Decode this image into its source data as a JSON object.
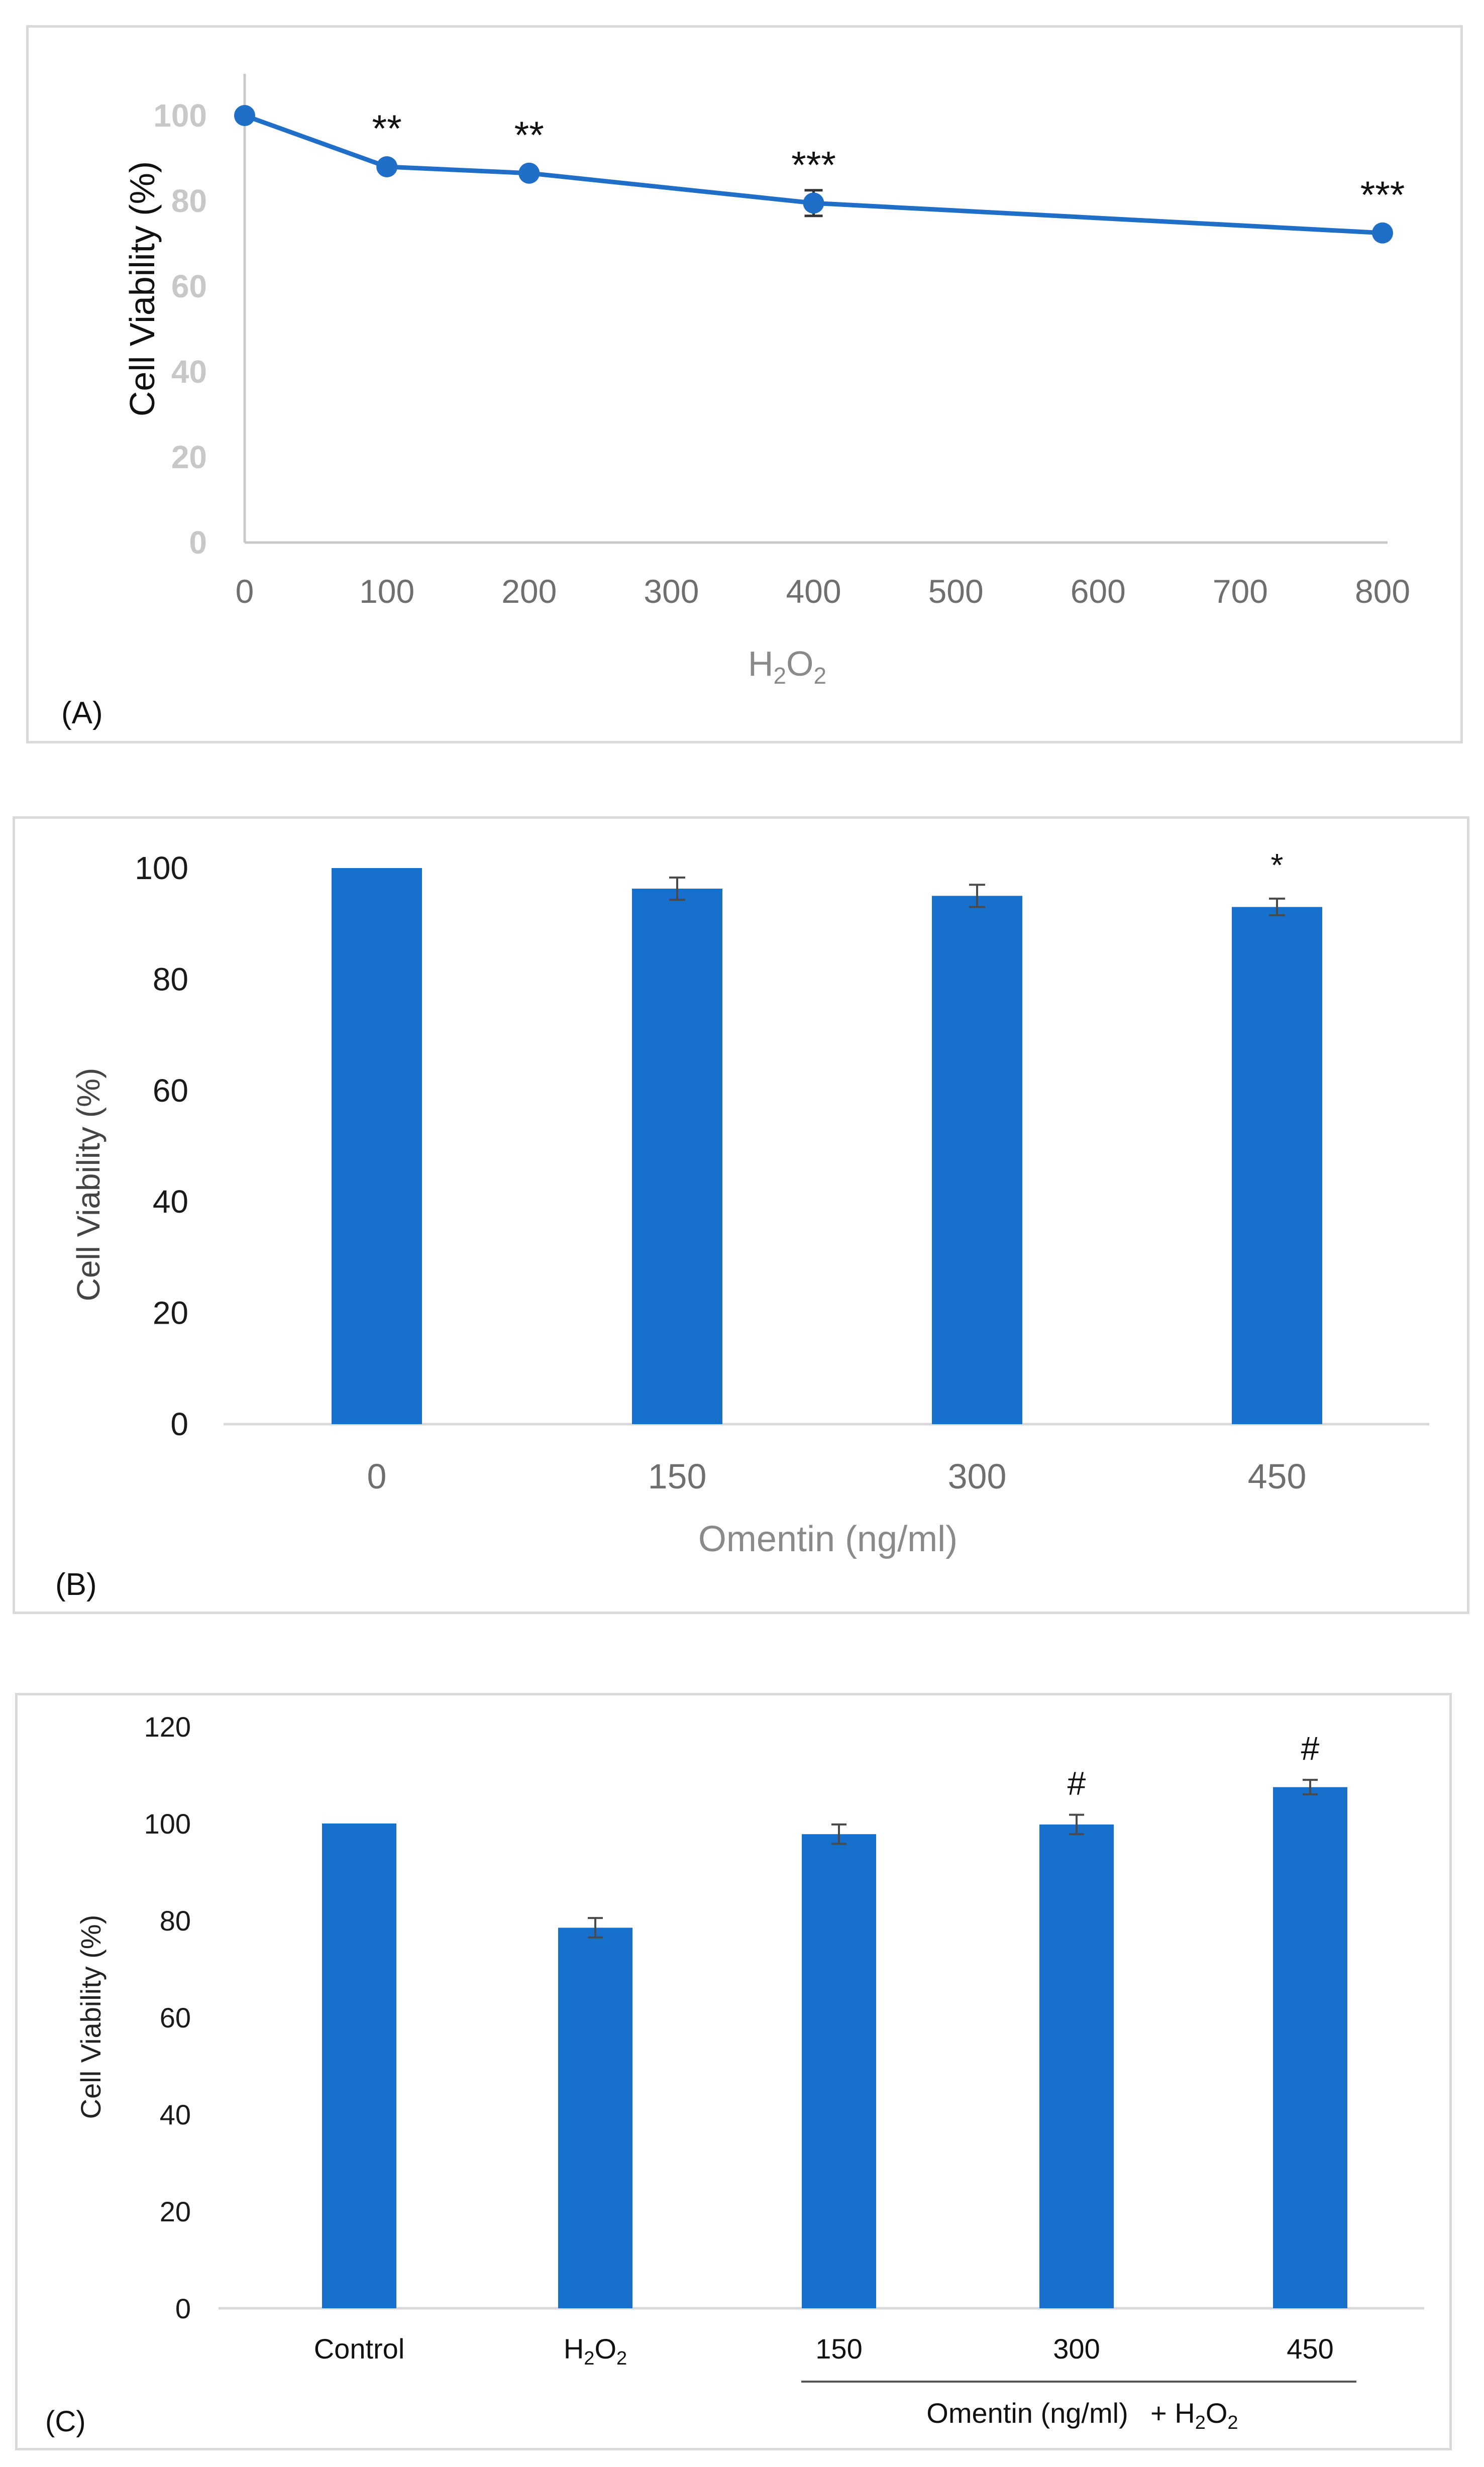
{
  "colors": {
    "series": "#1f6fc8",
    "bar": "#1771cc",
    "axis_dark": "#7f7f7f",
    "tick_gray": "#c8c8c8",
    "tick_dark": "#1a1a1a",
    "tick_mid": "#6f6f6f",
    "label_gray": "#8a8a8a",
    "errbar": "#4a4a4a"
  },
  "chart_data": [
    {
      "panel": "A",
      "panel_label": "(A)",
      "type": "line",
      "x": [
        0,
        100,
        200,
        400,
        800
      ],
      "y": [
        100,
        88,
        86.5,
        79.5,
        72.5
      ],
      "err": [
        0,
        0,
        0,
        3,
        0
      ],
      "annotations": [
        "",
        "**",
        "**",
        "***",
        "***"
      ],
      "xticks": [
        "0",
        "100",
        "200",
        "300",
        "400",
        "500",
        "600",
        "700",
        "800"
      ],
      "yticks": [
        "0",
        "20",
        "40",
        "60",
        "80",
        "100"
      ],
      "xlim": [
        0,
        800
      ],
      "ylim": [
        0,
        110
      ],
      "xlabel": "H",
      "xlabel_sub1": "2",
      "xlabel_mid": "O",
      "xlabel_sub2": "2",
      "ylabel": "Cell Viability (%)"
    },
    {
      "panel": "B",
      "panel_label": "(B)",
      "type": "bar",
      "categories": [
        "0",
        "150",
        "300",
        "450"
      ],
      "values": [
        100,
        96.3,
        95,
        93
      ],
      "err": [
        0,
        2,
        2,
        1.5
      ],
      "annotations": [
        "",
        "",
        "",
        "*"
      ],
      "yticks": [
        "0",
        "20",
        "40",
        "60",
        "80",
        "100"
      ],
      "ylim": [
        0,
        100
      ],
      "xlabel": "Omentin (ng/ml)",
      "ylabel": "Cell Viability (%)"
    },
    {
      "panel": "C",
      "panel_label": "(C)",
      "type": "bar",
      "categories": [
        "Control",
        "H2O2",
        "150",
        "300",
        "450"
      ],
      "values": [
        100,
        78.5,
        97.8,
        99.8,
        107.5
      ],
      "err": [
        0,
        2,
        2,
        2,
        1.5
      ],
      "annotations": [
        "",
        "",
        "",
        "#",
        "#"
      ],
      "yticks": [
        "0",
        "20",
        "40",
        "60",
        "80",
        "100",
        "120"
      ],
      "ylim": [
        0,
        120
      ],
      "xlabel": "Omentin (ng/ml)",
      "xlabel_suffix": "+ H",
      "xlabel_suffix_sub": "2",
      "xlabel_suffix_mid": "O",
      "xlabel_suffix_sub2": "2",
      "ylabel": "Cell Viability (%)"
    }
  ]
}
